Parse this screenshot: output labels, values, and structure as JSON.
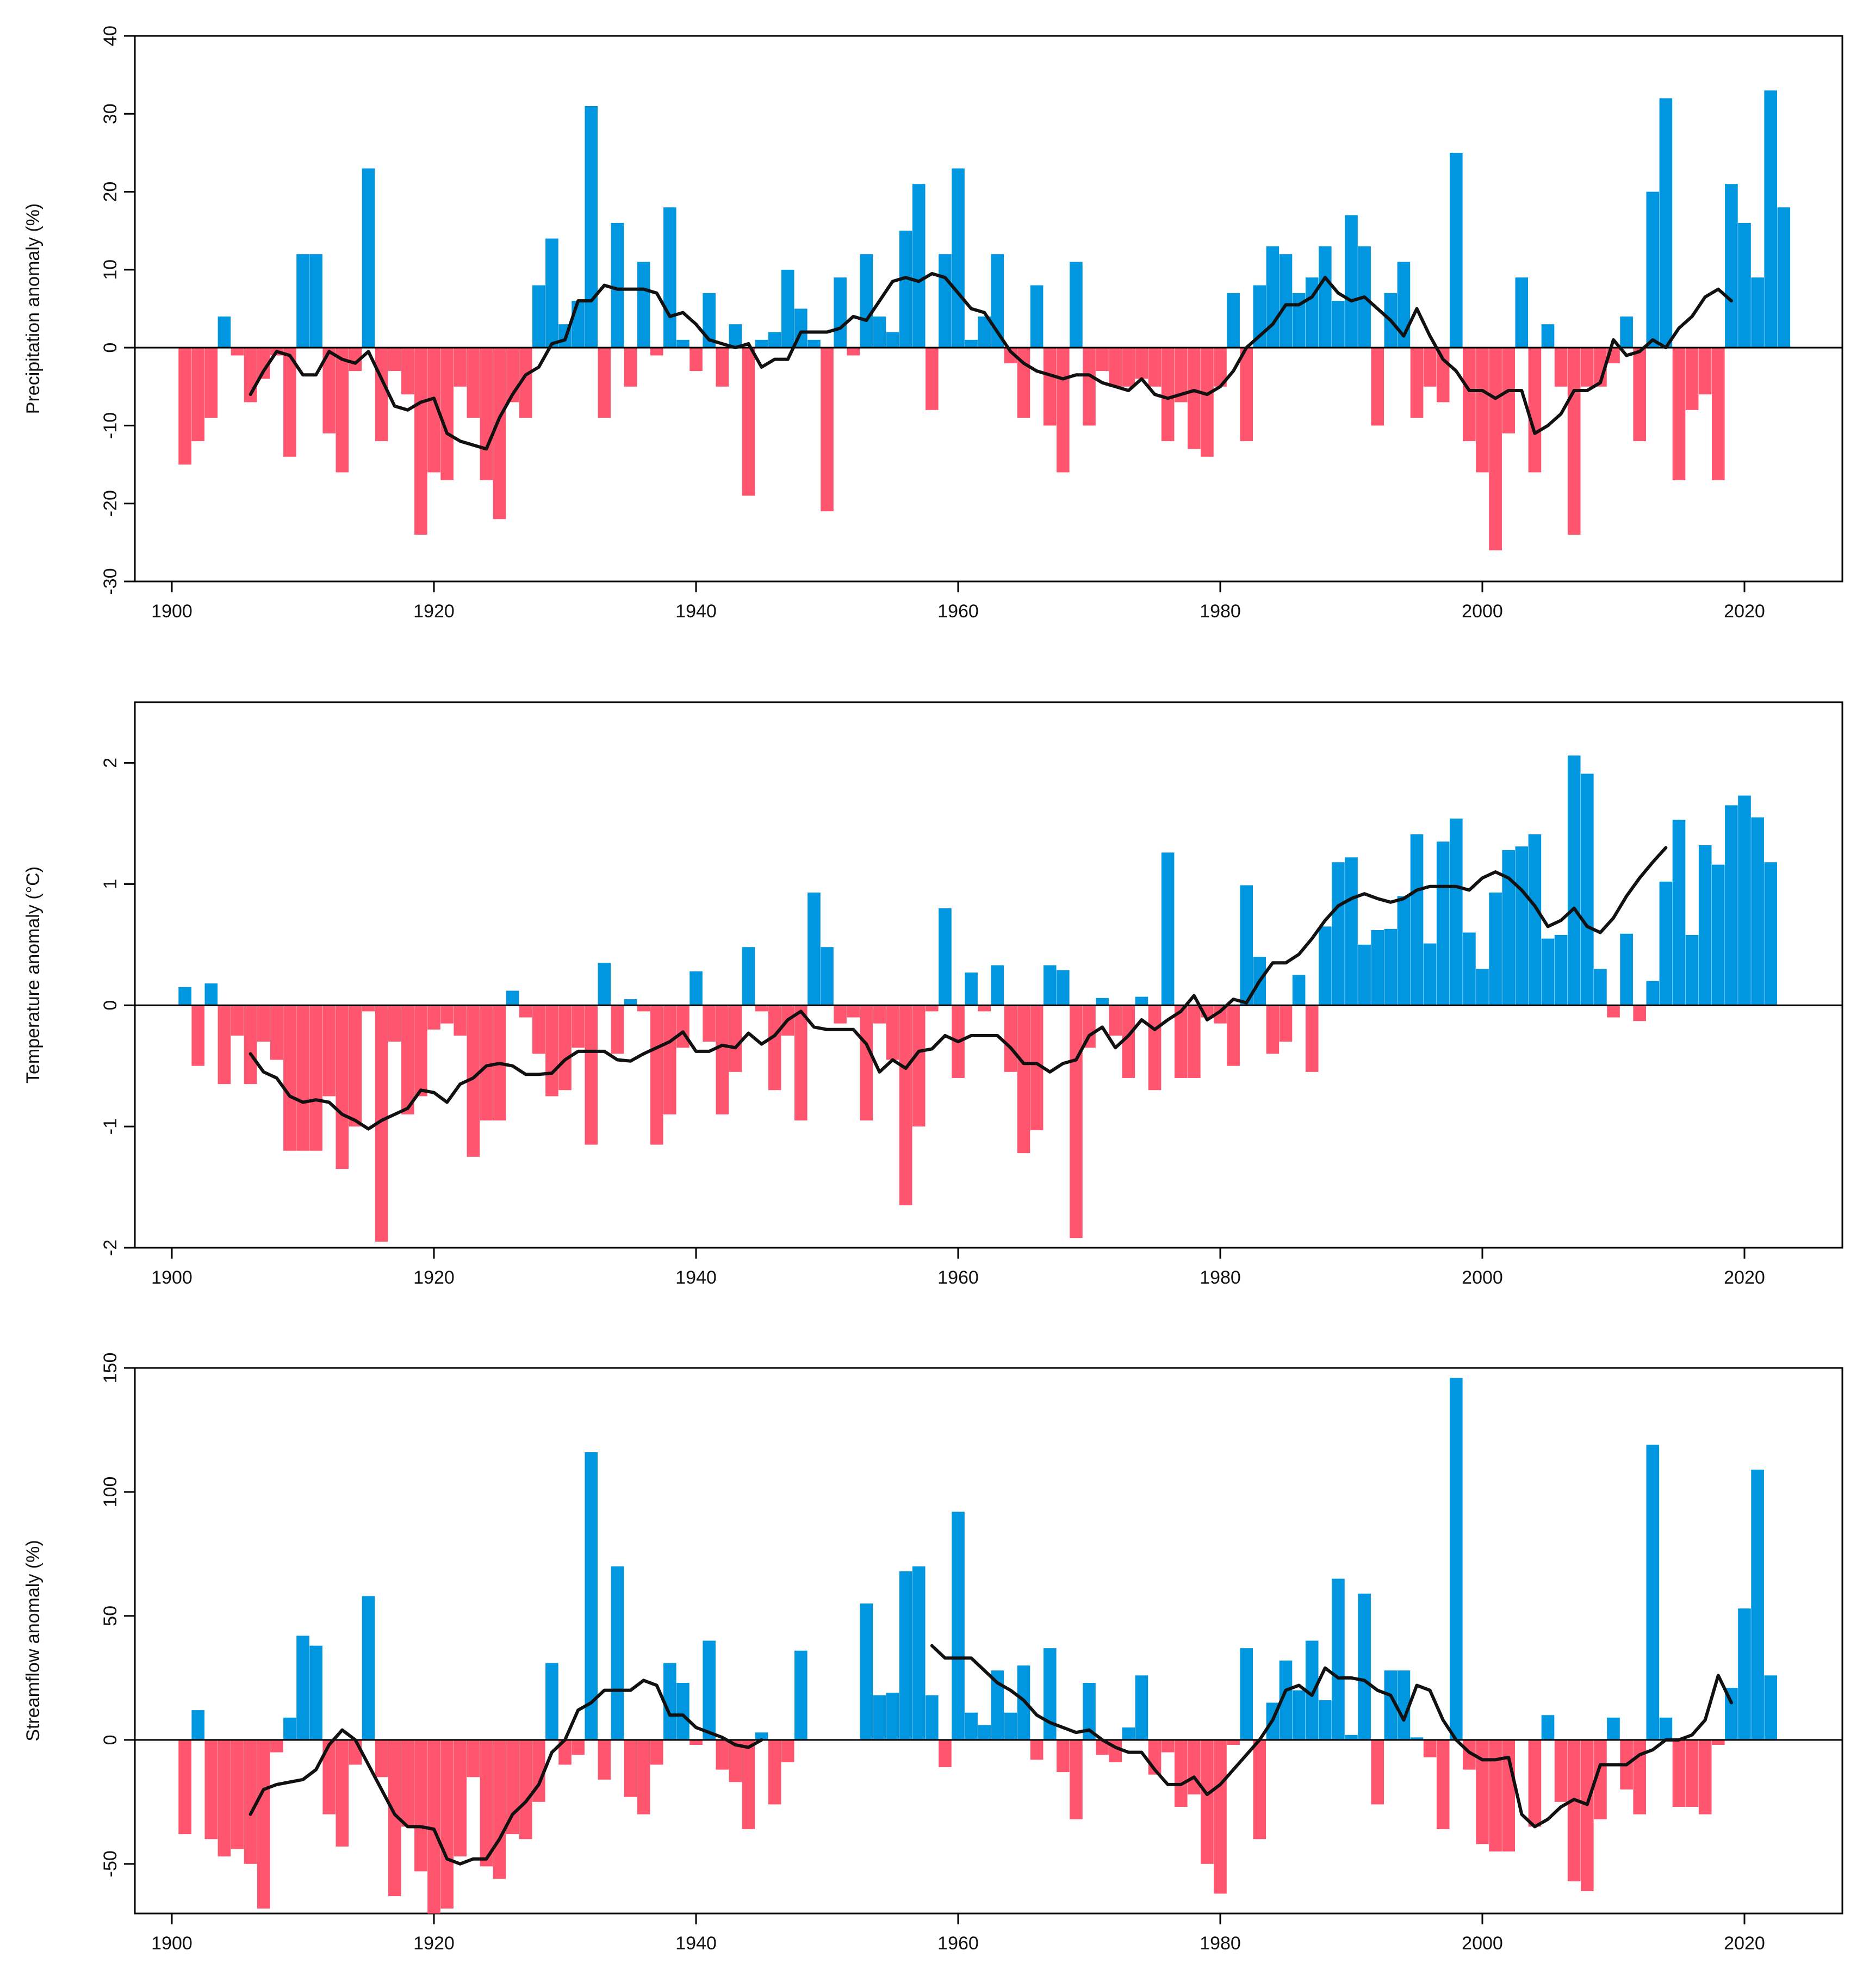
{
  "colors": {
    "positive": "#0096e0",
    "negative": "#ff556e",
    "line": "#111111"
  },
  "chart_data": [
    {
      "type": "bar",
      "ylabel": "Precipitation anomaly (%)",
      "ylim": [
        -30,
        40
      ],
      "yticks": [
        -30,
        -20,
        -10,
        0,
        10,
        20,
        30,
        40
      ],
      "xlim": [
        1900,
        2023
      ],
      "xticks": [
        1900,
        1920,
        1940,
        1960,
        1980,
        2000,
        2020
      ],
      "year_start": 1901,
      "values": [
        -15,
        -12,
        -9,
        4,
        -1,
        -7,
        -4,
        -1,
        -14,
        12,
        12,
        -11,
        -16,
        -3,
        23,
        -12,
        -3,
        -6,
        -24,
        -16,
        -17,
        -5,
        -9,
        -17,
        -22,
        -7,
        -9,
        8,
        14,
        3,
        6,
        31,
        -9,
        16,
        -5,
        11,
        -1,
        18,
        1,
        -3,
        7,
        -5,
        3,
        -19,
        1,
        2,
        10,
        5,
        1,
        -21,
        9,
        -1,
        12,
        4,
        2,
        15,
        21,
        -8,
        12,
        23,
        1,
        4,
        12,
        -2,
        -9,
        8,
        -10,
        -16,
        11,
        -10,
        -3,
        -5,
        -5,
        -4,
        -5,
        -12,
        -7,
        -13,
        -14,
        -5,
        7,
        -12,
        8,
        13,
        12,
        7,
        9,
        13,
        6,
        17,
        13,
        -10,
        7,
        11,
        -9,
        -5,
        -7,
        25,
        -12,
        -16,
        -26,
        -11,
        9,
        -16,
        3,
        -5,
        -24,
        -5,
        -5,
        -2,
        4,
        -12,
        20,
        32,
        -17,
        -8,
        -6,
        -17,
        21,
        16,
        9,
        33,
        18
      ],
      "smooth_start": 1906,
      "smooth": [
        -6,
        -3,
        -0.5,
        -1,
        -3.5,
        -3.5,
        -0.5,
        -1.5,
        -2,
        -0.5,
        -4,
        -7.5,
        -8,
        -7,
        -6.5,
        -11,
        -12,
        -12.5,
        -13,
        -9,
        -6,
        -3.5,
        -2.5,
        0.5,
        1,
        6,
        6,
        8,
        7.5,
        7.5,
        7.5,
        7,
        4,
        4.5,
        3,
        1,
        0.5,
        0,
        0.5,
        -2.5,
        -1.5,
        -1.5,
        2,
        2,
        2,
        2.5,
        4,
        3.5,
        6,
        8.5,
        9,
        8.5,
        9.5,
        9,
        7,
        5,
        4.5,
        2,
        -0.5,
        -2,
        -3,
        -3.5,
        -4,
        -3.5,
        -3.5,
        -4.5,
        -5,
        -5.5,
        -4,
        -6,
        -6.5,
        -6,
        -5.5,
        -6,
        -5,
        -3,
        0,
        1.5,
        3,
        5.5,
        5.5,
        6.5,
        9,
        7,
        6,
        6.5,
        5,
        3.5,
        1.5,
        5,
        1.5,
        -1.5,
        -3,
        -5.5,
        -5.5,
        -6.5,
        -5.5,
        -5.5,
        -11,
        -10,
        -8.5,
        -5.5,
        -5.5,
        -4.5,
        1,
        -1,
        -0.5,
        1,
        0,
        2.5,
        4,
        6.5,
        7.5,
        6
      ]
    },
    {
      "type": "bar",
      "ylabel": "Temperature anomaly (°C)",
      "ylim": [
        -2,
        2.5
      ],
      "yticks": [
        -2,
        -1,
        0,
        1,
        2
      ],
      "xlim": [
        1900,
        2023
      ],
      "xticks": [
        1900,
        1920,
        1940,
        1960,
        1980,
        2000,
        2020
      ],
      "year_start": 1901,
      "values": [
        0.15,
        -0.5,
        0.18,
        -0.65,
        -0.25,
        -0.65,
        -0.3,
        -0.45,
        -1.2,
        -1.2,
        -1.2,
        -0.75,
        -1.35,
        -1.0,
        -0.05,
        -1.95,
        -0.3,
        -0.9,
        -0.75,
        -0.2,
        -0.15,
        -0.25,
        -1.25,
        -0.95,
        -0.95,
        0.12,
        -0.1,
        -0.4,
        -0.75,
        -0.7,
        -0.35,
        -1.15,
        0.35,
        -0.4,
        0.05,
        -0.05,
        -1.15,
        -0.9,
        -0.35,
        0.28,
        -0.3,
        -0.9,
        -0.55,
        0.48,
        -0.05,
        -0.7,
        -0.25,
        -0.95,
        0.93,
        0.48,
        -0.15,
        -0.1,
        -0.95,
        -0.15,
        -0.45,
        -1.65,
        -1.0,
        -0.05,
        0.8,
        -0.6,
        0.27,
        -0.05,
        0.33,
        -0.55,
        -1.22,
        -1.03,
        0.33,
        0.29,
        -1.92,
        -0.35,
        0.06,
        -0.25,
        -0.6,
        0.07,
        -0.7,
        1.26,
        -0.6,
        -0.6,
        -0.1,
        -0.15,
        -0.5,
        0.99,
        0.4,
        -0.4,
        -0.3,
        0.25,
        -0.55,
        0.65,
        1.18,
        1.22,
        0.5,
        0.62,
        0.63,
        0.9,
        1.41,
        0.51,
        1.35,
        1.54,
        0.6,
        0.3,
        0.93,
        1.28,
        1.31,
        1.41,
        0.55,
        0.58,
        2.06,
        1.91,
        0.3,
        -0.1,
        0.59,
        -0.13,
        0.2,
        1.02,
        1.53,
        0.58,
        1.32,
        1.16,
        1.65,
        1.73,
        1.55,
        1.18
      ],
      "smooth_start": 1906,
      "smooth": [
        -0.4,
        -0.55,
        -0.6,
        -0.75,
        -0.8,
        -0.78,
        -0.8,
        -0.9,
        -0.95,
        -1.02,
        -0.95,
        -0.9,
        -0.85,
        -0.7,
        -0.72,
        -0.8,
        -0.65,
        -0.6,
        -0.5,
        -0.48,
        -0.5,
        -0.57,
        -0.57,
        -0.56,
        -0.45,
        -0.38,
        -0.38,
        -0.38,
        -0.45,
        -0.46,
        -0.4,
        -0.35,
        -0.3,
        -0.22,
        -0.38,
        -0.38,
        -0.33,
        -0.35,
        -0.23,
        -0.32,
        -0.25,
        -0.12,
        -0.05,
        -0.18,
        -0.2,
        -0.2,
        -0.2,
        -0.32,
        -0.55,
        -0.45,
        -0.52,
        -0.38,
        -0.36,
        -0.25,
        -0.3,
        -0.25,
        -0.25,
        -0.25,
        -0.35,
        -0.48,
        -0.48,
        -0.55,
        -0.48,
        -0.45,
        -0.25,
        -0.18,
        -0.35,
        -0.25,
        -0.12,
        -0.2,
        -0.12,
        -0.05,
        0.08,
        -0.12,
        -0.05,
        0.05,
        0.02,
        0.2,
        0.35,
        0.35,
        0.42,
        0.55,
        0.7,
        0.82,
        0.88,
        0.92,
        0.88,
        0.85,
        0.88,
        0.95,
        0.98,
        0.98,
        0.98,
        0.95,
        1.05,
        1.1,
        1.05,
        0.95,
        0.82,
        0.65,
        0.7,
        0.8,
        0.65,
        0.6,
        0.72,
        0.9,
        1.05,
        1.18,
        1.3
      ]
    },
    {
      "type": "bar",
      "ylabel": "Streamflow anomaly (%)",
      "ylim": [
        -70,
        150
      ],
      "yticks": [
        -50,
        0,
        50,
        100,
        150
      ],
      "xlim": [
        1900,
        2023
      ],
      "xticks": [
        1900,
        1920,
        1940,
        1960,
        1980,
        2000,
        2020
      ],
      "year_start": 1901,
      "values": [
        -38,
        12,
        -40,
        -47,
        -44,
        -50,
        -68,
        -5,
        9,
        42,
        38,
        -30,
        -43,
        -10,
        58,
        -15,
        -63,
        -35,
        -53,
        -70,
        -68,
        -47,
        -15,
        -51,
        -56,
        -38,
        -40,
        -25,
        31,
        -10,
        -6,
        116,
        -16,
        70,
        -23,
        -30,
        -10,
        31,
        23,
        -2,
        40,
        -12,
        -17,
        -36,
        3,
        -26,
        -9,
        36,
        null,
        null,
        null,
        null,
        55,
        18,
        19,
        68,
        70,
        18,
        -11,
        92,
        11,
        6,
        28,
        11,
        30,
        -8,
        37,
        -13,
        -32,
        23,
        -6,
        -9,
        5,
        26,
        -14,
        -5,
        -27,
        -22,
        -50,
        -62,
        -2,
        37,
        -40,
        15,
        32,
        20,
        40,
        16,
        65,
        2,
        59,
        -26,
        28,
        28,
        1,
        -7,
        -36,
        146,
        -12,
        -42,
        -45,
        -45,
        0,
        -35,
        10,
        -25,
        -57,
        -61,
        -32,
        9,
        -20,
        -30,
        119,
        9,
        -27,
        -27,
        -30,
        -2,
        21,
        53,
        109,
        26
      ],
      "smooth_segments": [
        {
          "start": 1906,
          "values": [
            -30,
            -20,
            -18,
            -17,
            -16,
            -12,
            -2,
            4,
            0,
            -10,
            -20,
            -30,
            -35,
            -35,
            -36,
            -48,
            -50,
            -48,
            -48,
            -40,
            -30,
            -25,
            -18,
            -5,
            0,
            12,
            15,
            20,
            20,
            20,
            24,
            22,
            10,
            10,
            5,
            3,
            1,
            -2,
            -3,
            0
          ]
        },
        {
          "start": 1958,
          "values": [
            38,
            33,
            33,
            33,
            28,
            23,
            20,
            16,
            10,
            7,
            5,
            3,
            4,
            0,
            -3,
            -5,
            -5,
            -12,
            -18,
            -18,
            -15,
            -22,
            -18,
            -12,
            -6,
            0,
            8,
            20,
            22,
            18,
            29,
            25,
            25,
            24,
            20,
            18,
            8,
            22,
            20,
            8,
            0,
            -5,
            -8,
            -8,
            -7,
            -30,
            -35,
            -32,
            -27,
            -24,
            -26,
            -10,
            -10,
            -10,
            -6,
            -4,
            0,
            0,
            2,
            8,
            26,
            15
          ]
        }
      ]
    }
  ]
}
